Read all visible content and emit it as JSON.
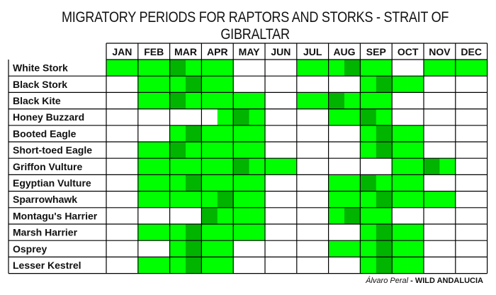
{
  "title": "MIGRATORY PERIODS FOR RAPTORS AND STORKS - STRAIT OF GIBRALTAR",
  "credit_author": "Álvaro Peral",
  "credit_org": " - WILD ANDALUCIA",
  "colors": {
    "none": "#ffffff",
    "present": "#00ff00",
    "peak": "#00b400",
    "grid": "#000000"
  },
  "chart_data": {
    "type": "table",
    "title": "MIGRATORY PERIODS FOR RAPTORS AND STORKS - STRAIT OF GIBRALTAR",
    "columns": [
      "JAN",
      "FEB",
      "MAR",
      "APR",
      "MAY",
      "JUN",
      "JUL",
      "AUG",
      "SEP",
      "OCT",
      "NOV",
      "DEC"
    ],
    "legend_note": "each month split into two half-month cells; 0 = absent, 1 = migration period, 2 = peak",
    "rows": [
      {
        "name": "White Stork",
        "values": [
          1,
          1,
          1,
          1,
          2,
          1,
          1,
          1,
          0,
          0,
          0,
          0,
          1,
          1,
          1,
          2,
          1,
          1,
          0,
          0,
          1,
          1,
          1,
          1
        ]
      },
      {
        "name": "Black Stork",
        "values": [
          0,
          0,
          1,
          1,
          1,
          2,
          1,
          1,
          0,
          0,
          0,
          0,
          0,
          0,
          0,
          0,
          1,
          2,
          1,
          1,
          0,
          0,
          0,
          0
        ]
      },
      {
        "name": "Black Kite",
        "values": [
          0,
          0,
          1,
          1,
          2,
          1,
          1,
          1,
          1,
          1,
          0,
          0,
          1,
          1,
          2,
          1,
          1,
          1,
          0,
          0,
          0,
          0,
          0,
          0
        ]
      },
      {
        "name": "Honey Buzzard",
        "values": [
          0,
          0,
          0,
          0,
          0,
          0,
          0,
          1,
          2,
          1,
          0,
          0,
          0,
          0,
          1,
          1,
          2,
          1,
          0,
          0,
          0,
          0,
          0,
          0
        ]
      },
      {
        "name": "Booted Eagle",
        "values": [
          0,
          0,
          0,
          0,
          1,
          2,
          1,
          1,
          1,
          1,
          0,
          0,
          0,
          0,
          0,
          0,
          1,
          2,
          1,
          1,
          0,
          0,
          0,
          0
        ]
      },
      {
        "name": "Short-toed Eagle",
        "values": [
          0,
          0,
          1,
          1,
          2,
          1,
          1,
          1,
          1,
          1,
          0,
          0,
          0,
          0,
          0,
          0,
          1,
          2,
          1,
          1,
          0,
          0,
          0,
          0
        ]
      },
      {
        "name": "Griffon Vulture",
        "values": [
          0,
          0,
          1,
          1,
          1,
          1,
          1,
          1,
          2,
          1,
          1,
          1,
          0,
          0,
          0,
          0,
          0,
          0,
          1,
          1,
          2,
          1,
          0,
          0
        ]
      },
      {
        "name": "Egyptian Vulture",
        "values": [
          0,
          0,
          1,
          1,
          1,
          2,
          1,
          1,
          1,
          1,
          0,
          0,
          0,
          0,
          1,
          1,
          2,
          1,
          1,
          1,
          0,
          0,
          0,
          0
        ]
      },
      {
        "name": "Sparrowhawk",
        "values": [
          0,
          0,
          1,
          1,
          1,
          1,
          1,
          2,
          1,
          1,
          0,
          0,
          0,
          0,
          1,
          1,
          1,
          2,
          1,
          1,
          1,
          1,
          0,
          0
        ]
      },
      {
        "name": "Montagu's Harrier",
        "values": [
          0,
          0,
          0,
          0,
          0,
          0,
          2,
          1,
          1,
          1,
          0,
          0,
          0,
          0,
          1,
          2,
          1,
          1,
          0,
          0,
          0,
          0,
          0,
          0
        ]
      },
      {
        "name": "Marsh Harrier",
        "values": [
          0,
          0,
          1,
          1,
          1,
          2,
          1,
          1,
          1,
          1,
          0,
          0,
          0,
          0,
          0,
          0,
          1,
          2,
          1,
          1,
          0,
          0,
          0,
          0
        ]
      },
      {
        "name": "Osprey",
        "values": [
          0,
          0,
          0,
          0,
          1,
          2,
          1,
          1,
          0,
          0,
          0,
          0,
          0,
          0,
          1,
          1,
          1,
          2,
          1,
          1,
          0,
          0,
          0,
          0
        ]
      },
      {
        "name": "Lesser Kestrel",
        "values": [
          0,
          0,
          1,
          1,
          1,
          2,
          1,
          1,
          0,
          0,
          0,
          0,
          0,
          0,
          0,
          0,
          1,
          2,
          1,
          1,
          0,
          0,
          0,
          0
        ]
      }
    ]
  }
}
